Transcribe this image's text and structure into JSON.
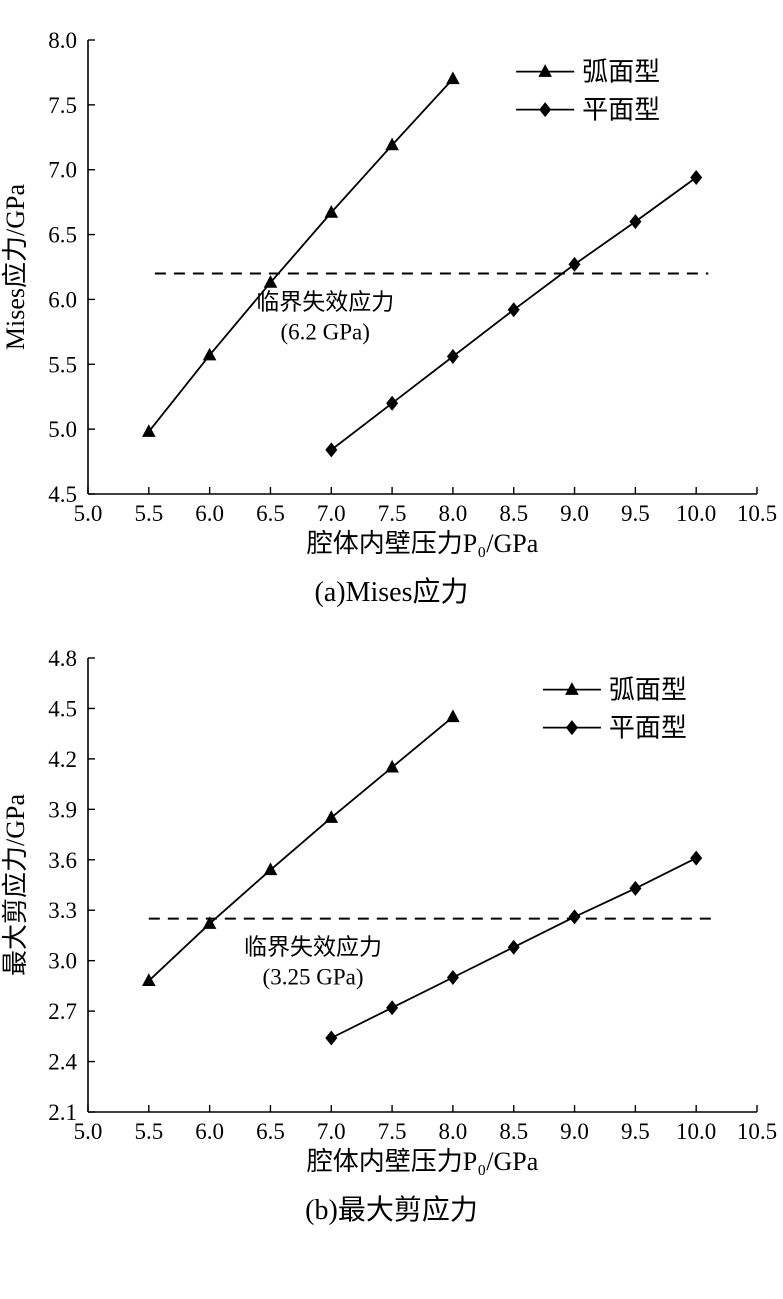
{
  "page": {
    "background": "#ffffff",
    "foreground": "#000000"
  },
  "chart_data": [
    {
      "id": "a",
      "type": "line",
      "caption": "(a)Mises应力",
      "xlabel": "腔体内壁压力P₀/GPa",
      "ylabel": "Mises应力/GPa",
      "xlim": [
        5.0,
        10.5
      ],
      "xtick": 0.5,
      "ylim": [
        4.5,
        8.0
      ],
      "ytick": 0.5,
      "grid": false,
      "color": "#000000",
      "series": [
        {
          "name": "弧面型",
          "marker": "triangle",
          "x": [
            5.5,
            6.0,
            6.5,
            7.0,
            7.5,
            8.0
          ],
          "y": [
            4.98,
            5.57,
            6.13,
            6.67,
            7.19,
            7.7
          ]
        },
        {
          "name": "平面型",
          "marker": "diamond",
          "x": [
            7.0,
            7.5,
            8.0,
            8.5,
            9.0,
            9.5,
            10.0
          ],
          "y": [
            4.84,
            5.2,
            5.56,
            5.92,
            6.27,
            6.6,
            6.94
          ]
        }
      ],
      "critical_line": {
        "value": 6.2,
        "x_start": 5.55,
        "x_end": 10.1,
        "label_lines": [
          "临界失效应力",
          "(6.2 GPa)"
        ],
        "label_x": 6.95
      },
      "legend": {
        "position": "top-right-inside",
        "fx": 0.64,
        "fy": 0.03
      }
    },
    {
      "id": "b",
      "type": "line",
      "caption": "(b)最大剪应力",
      "xlabel": "腔体内壁压力P₀/GPa",
      "ylabel": "最大剪应力/GPa",
      "xlim": [
        5.0,
        10.5
      ],
      "xtick": 0.5,
      "ylim": [
        2.1,
        4.8
      ],
      "ytick": 0.3,
      "grid": false,
      "color": "#000000",
      "series": [
        {
          "name": "弧面型",
          "marker": "triangle",
          "x": [
            5.5,
            6.0,
            6.5,
            7.0,
            7.5,
            8.0
          ],
          "y": [
            2.88,
            3.22,
            3.54,
            3.85,
            4.15,
            4.45
          ]
        },
        {
          "name": "平面型",
          "marker": "diamond",
          "x": [
            7.0,
            7.5,
            8.0,
            8.5,
            9.0,
            9.5,
            10.0
          ],
          "y": [
            2.54,
            2.72,
            2.9,
            3.08,
            3.26,
            3.43,
            3.61
          ]
        }
      ],
      "critical_line": {
        "value": 3.25,
        "x_start": 5.5,
        "x_end": 10.15,
        "label_lines": [
          "临界失效应力",
          "(3.25 GPa)"
        ],
        "label_x": 6.85
      },
      "legend": {
        "position": "top-right-inside",
        "fx": 0.68,
        "fy": 0.03
      }
    }
  ]
}
